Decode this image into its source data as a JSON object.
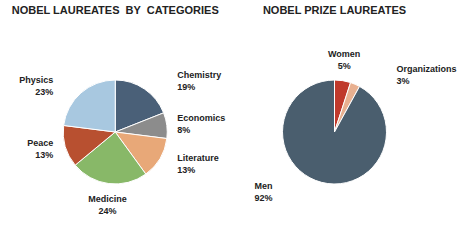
{
  "chart_data": [
    {
      "type": "pie",
      "title": "NOBEL LAUREATES  BY  CATEGORIES",
      "categories": [
        "Chemistry",
        "Economics",
        "Literature",
        "Medicine",
        "Peace",
        "Physics"
      ],
      "values": [
        19,
        8,
        13,
        24,
        13,
        23
      ],
      "value_labels": [
        "19%",
        "8%",
        "13%",
        "24%",
        "13%",
        "23%"
      ],
      "colors": [
        "#4a6078",
        "#8c8c8c",
        "#e8a878",
        "#88b868",
        "#b85030",
        "#a8c8e0"
      ],
      "data_labels": true
    },
    {
      "type": "pie",
      "title": "NOBEL PRIZE LAUREATES",
      "categories": [
        "Women",
        "Organizations",
        "Men"
      ],
      "values": [
        5,
        3,
        92
      ],
      "value_labels": [
        "5%",
        "3%",
        "92%"
      ],
      "colors": [
        "#c0392b",
        "#e8b090",
        "#4a5e6e"
      ],
      "data_labels": true
    }
  ]
}
